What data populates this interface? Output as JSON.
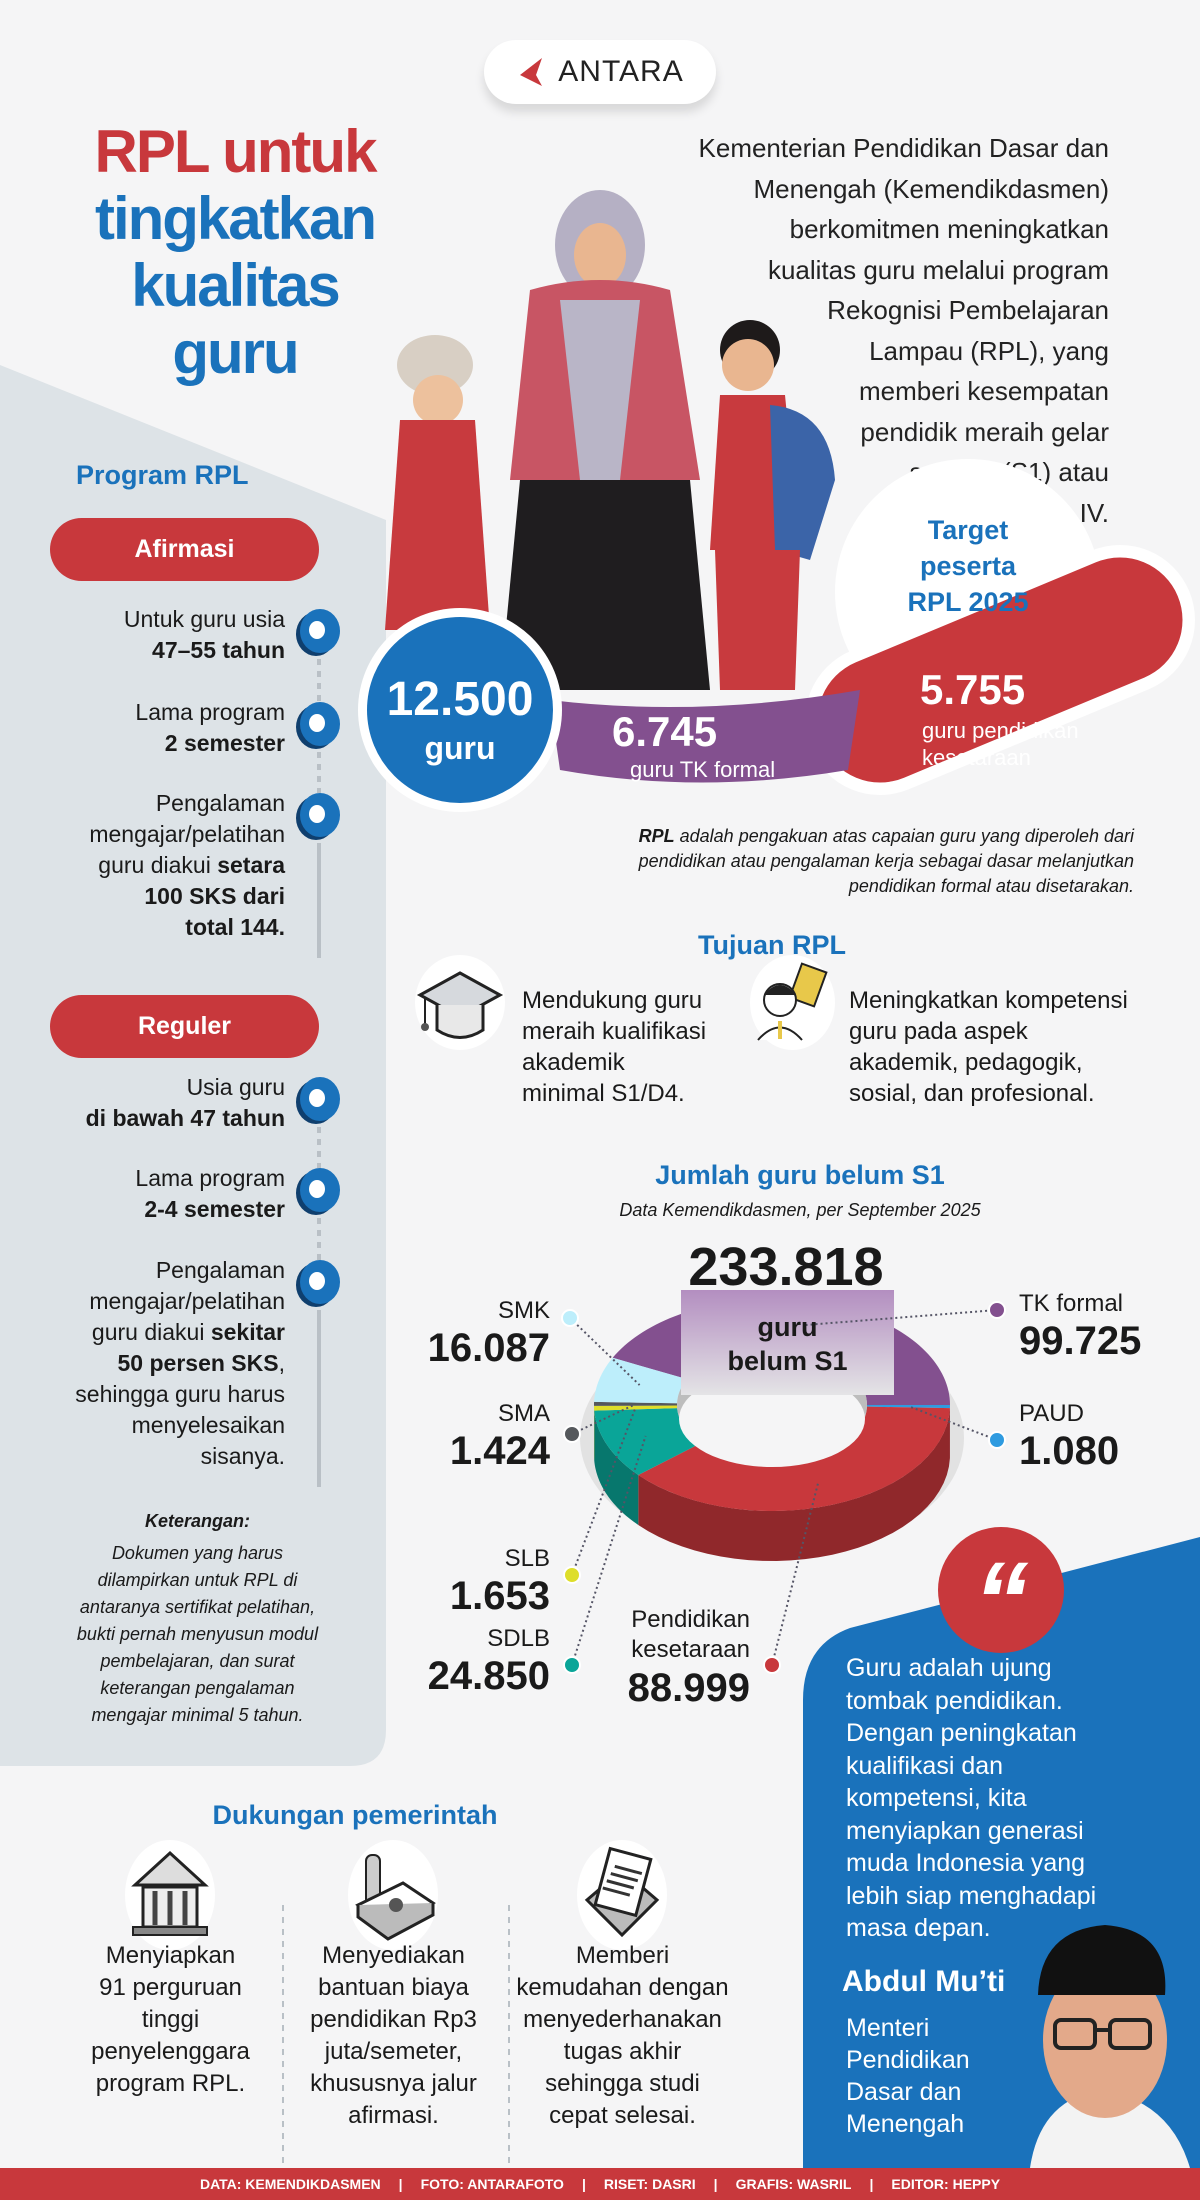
{
  "logo": {
    "text": "ANTARA",
    "brand_color": "#c8383c"
  },
  "title": {
    "line1": "RPL untuk",
    "line2": "tingkatkan",
    "line3": "kualitas",
    "line4": "guru"
  },
  "intro": [
    "Kementerian Pendidikan Dasar dan",
    "Menengah (Kemendikdasmen)",
    "berkomitmen meningkatkan",
    "kualitas guru melalui program",
    "Rekognisi Pembelajaran",
    "Lampau (RPL), yang",
    "memberi kesempatan",
    "pendidik meraih gelar",
    "sarjana (S1) atau",
    "Diploma IV."
  ],
  "program": {
    "heading": "Program RPL",
    "afirmasi": {
      "label": "Afirmasi",
      "items": [
        [
          [
            {
              "text": "Untuk guru usia",
              "bold": false
            }
          ],
          [
            {
              "text": "47–55 tahun",
              "bold": true
            }
          ]
        ],
        [
          [
            {
              "text": "Lama program",
              "bold": false
            }
          ],
          [
            {
              "text": "2 semester",
              "bold": true
            }
          ]
        ],
        [
          [
            {
              "text": "Pengalaman",
              "bold": false
            }
          ],
          [
            {
              "text": "mengajar/pelatihan",
              "bold": false
            }
          ],
          [
            {
              "text": "guru diakui ",
              "bold": false
            },
            {
              "text": "setara",
              "bold": true
            }
          ],
          [
            {
              "text": "100 SKS dari",
              "bold": true
            }
          ],
          [
            {
              "text": "total 144.",
              "bold": true
            }
          ]
        ]
      ]
    },
    "reguler": {
      "label": "Reguler",
      "items": [
        [
          [
            {
              "text": "Usia guru",
              "bold": false
            }
          ],
          [
            {
              "text": "di bawah 47 tahun",
              "bold": true
            }
          ]
        ],
        [
          [
            {
              "text": "Lama program",
              "bold": false
            }
          ],
          [
            {
              "text": "2-4 semester",
              "bold": true
            }
          ]
        ],
        [
          [
            {
              "text": "Pengalaman",
              "bold": false
            }
          ],
          [
            {
              "text": "mengajar/pelatihan",
              "bold": false
            }
          ],
          [
            {
              "text": "guru diakui ",
              "bold": false
            },
            {
              "text": "sekitar",
              "bold": true
            }
          ],
          [
            {
              "text": "50 persen SKS",
              "bold": true
            },
            {
              "text": ",",
              "bold": false
            }
          ],
          [
            {
              "text": "sehingga guru harus",
              "bold": false
            }
          ],
          [
            {
              "text": "menyelesaikan",
              "bold": false
            }
          ],
          [
            {
              "text": "sisanya.",
              "bold": false
            }
          ]
        ]
      ]
    },
    "note": {
      "heading": "Keterangan:",
      "lines": [
        "Dokumen yang harus",
        "dilampirkan untuk RPL di",
        "antaranya sertifikat pelatihan,",
        "bukti pernah menyusun modul",
        "pembelajaran, dan surat",
        "keterangan pengalaman",
        "mengajar minimal 5 tahun."
      ]
    }
  },
  "target": {
    "heading": [
      "Target",
      "peserta",
      "RPL 2025"
    ],
    "total": {
      "value": "12.500",
      "unit": "guru"
    },
    "tk": {
      "value": "6.745",
      "label": "guru TK formal"
    },
    "kesetaraan": {
      "value": "5.755",
      "label": [
        "guru pendidikan",
        "kesetaraan"
      ]
    }
  },
  "definition": {
    "bold": "RPL",
    "lines": [
      " adalah pengakuan atas capaian guru yang diperoleh dari",
      "pendidikan atau pengalaman kerja sebagai dasar melanjutkan",
      "pendidikan formal atau disetarakan."
    ]
  },
  "tujuan": {
    "heading": "Tujuan RPL",
    "items": [
      {
        "icon": "graduation-cap-icon",
        "lines": [
          "Mendukung guru",
          "meraih kualifikasi",
          "akademik",
          "minimal S1/D4."
        ]
      },
      {
        "icon": "teacher-idea-icon",
        "lines": [
          "Meningkatkan kompetensi",
          "guru pada aspek",
          "akademik, pedagogik,",
          "sosial, dan profesional."
        ]
      }
    ]
  },
  "chart_data": {
    "type": "pie",
    "style": "3d-donut",
    "title": "Jumlah guru belum S1",
    "subtitle": "Data Kemendikdasmen, per September 2025",
    "total": "233.818",
    "center_label": [
      "guru",
      "belum S1"
    ],
    "slices": [
      {
        "name": "TK formal",
        "value": 99725,
        "label": "99.725",
        "color": "#83508f"
      },
      {
        "name": "PAUD",
        "value": 1080,
        "label": "1.080",
        "color": "#2f9be0"
      },
      {
        "name": "Pendidikan kesetaraan",
        "label_lines": [
          "Pendidikan",
          "kesetaraan"
        ],
        "value": 88999,
        "label": "88.999",
        "color": "#c8383c"
      },
      {
        "name": "SDLB",
        "value": 24850,
        "label": "24.850",
        "color": "#0aa598"
      },
      {
        "name": "SLB",
        "value": 1653,
        "label": "1.653",
        "color": "#dede2a"
      },
      {
        "name": "SMA",
        "value": 1424,
        "label": "1.424",
        "color": "#55585c"
      },
      {
        "name": "SMK",
        "value": 16087,
        "label": "16.087",
        "color": "#bdeefb"
      }
    ]
  },
  "quote": {
    "mark": "“",
    "lines": [
      "Guru adalah ujung",
      "tombak pendidikan.",
      "Dengan peningkatan",
      "kualifikasi dan",
      "kompetensi, kita",
      "menyiapkan generasi",
      "muda Indonesia yang",
      "lebih siap menghadapi",
      "masa depan."
    ],
    "name": "Abdul Mu’ti",
    "role": [
      "Menteri",
      "Pendidikan",
      "Dasar dan",
      "Menengah"
    ]
  },
  "dukungan": {
    "heading": "Dukungan pemerintah",
    "items": [
      {
        "icon": "university-building-icon",
        "lines": [
          "Menyiapkan",
          "91 perguruan",
          "tinggi",
          "penyelenggara",
          "program RPL."
        ]
      },
      {
        "icon": "money-stack-icon",
        "lines": [
          "Menyediakan",
          "bantuan biaya",
          "pendidikan Rp3",
          "juta/semeter,",
          "khususnya jalur",
          "afirmasi."
        ]
      },
      {
        "icon": "document-tray-icon",
        "lines": [
          "Memberi",
          "kemudahan dengan",
          "menyederhanakan",
          "tugas akhir",
          "sehingga studi",
          "cepat selesai."
        ]
      }
    ]
  },
  "footer": [
    "DATA: KEMENDIKDASMEN",
    "FOTO: ANTARAFOTO",
    "RISET: DASRI",
    "GRAFIS: WASRIL",
    "EDITOR: HEPPY"
  ],
  "colors": {
    "red": "#c8383c",
    "blue": "#1a72bb",
    "purple": "#83508f",
    "panel": "#dde3e7"
  }
}
